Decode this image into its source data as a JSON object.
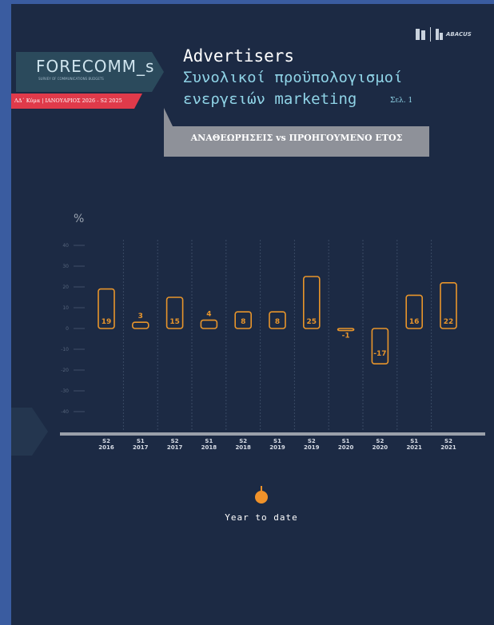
{
  "header": {
    "logo": "FORECOMM_s",
    "logo_sub": "SURVEY OF COMMUNICATIONS BUDGETS",
    "wave": "ΛΔ΄ Κύμα | ΙΑΝΟΥΑΡΙΟΣ 2026 - S2 2025",
    "title_1": "Advertisers",
    "title_2": "Συνολικοί προϋπολογισμοί",
    "title_3": "ενεργειών marketing",
    "page": "Σελ. 1",
    "subtitle": "ΑΝΑΘΕΩΡΗΣΕΙΣ vs ΠΡΟΗΓΟΥΜΕΝΟ ΕΤΟΣ",
    "brand": "ABACUS"
  },
  "chart_data": {
    "type": "bar",
    "y_label": "%",
    "color": "#e8952b",
    "categories": [
      "S2 2016",
      "S1 2017",
      "S2 2017",
      "S1 2018",
      "S2 2018",
      "S1 2019",
      "S2 2019",
      "S1 2020",
      "S2 2020",
      "S1 2021",
      "S2 2021"
    ],
    "values": [
      19,
      3,
      15,
      4,
      8,
      8,
      25,
      -1,
      -17,
      16,
      22
    ],
    "ylim": [
      -40,
      40
    ],
    "yticks": [
      40,
      30,
      20,
      10,
      0,
      -10,
      -20,
      -30,
      -40
    ],
    "grid": false
  },
  "footer": {
    "legend": "Year to date"
  }
}
